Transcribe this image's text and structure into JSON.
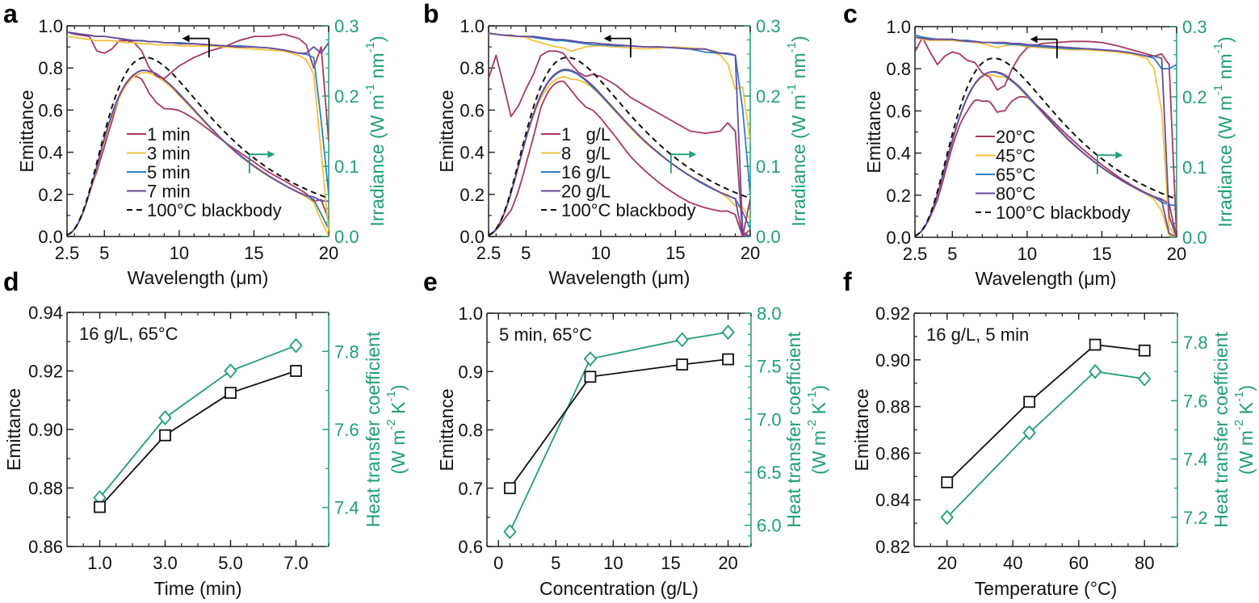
{
  "colors": {
    "right_axis": "#1f9e78",
    "axis": "#222222",
    "series1": "#a8385f",
    "series2": "#f4c03e",
    "series3": "#2c82c4",
    "series4": "#6a4a9e",
    "blackbody": "#111111",
    "emittance_marker": "#111111",
    "htc_marker": "#1f9e78"
  },
  "chart_data": [
    {
      "panel": "a",
      "type": "line",
      "xlabel": "Wavelength (μm)",
      "ylabel": "Emittance",
      "ylabel_right_parts": [
        "Irradiance (W m",
        "-1",
        " nm",
        "-1",
        ")"
      ],
      "xlim": [
        2.5,
        20
      ],
      "ylim": [
        0,
        1
      ],
      "ylim_right": [
        0,
        0.3
      ],
      "xticks": [
        2.5,
        5,
        10,
        15,
        20
      ],
      "xtick_labels": [
        "2.5",
        "5",
        "10",
        "15",
        "20"
      ],
      "yticks": [
        0,
        0.2,
        0.4,
        0.6,
        0.8,
        1.0
      ],
      "ytick_labels": [
        "0.0",
        "0.2",
        "0.4",
        "0.6",
        "0.8",
        "1.0"
      ],
      "yticks_right": [
        0,
        0.1,
        0.2,
        0.3
      ],
      "ytick_labels_right": [
        "0.0",
        "0.1",
        "0.2",
        "0.3"
      ],
      "wavelength": [
        2.5,
        3,
        3.5,
        4,
        4.5,
        5,
        5.5,
        6,
        6.5,
        7,
        7.5,
        8,
        8.5,
        9,
        9.5,
        10,
        11,
        12,
        13,
        14,
        15,
        16,
        17,
        18,
        18.5,
        19,
        19.5,
        20
      ],
      "series": [
        {
          "name": "1 min",
          "emittance": [
            0.97,
            0.96,
            0.955,
            0.95,
            0.88,
            0.87,
            0.89,
            0.93,
            0.93,
            0.92,
            0.88,
            0.8,
            0.76,
            0.75,
            0.78,
            0.81,
            0.85,
            0.88,
            0.9,
            0.93,
            0.95,
            0.95,
            0.96,
            0.94,
            0.91,
            0.8,
            0.9,
            0.45
          ]
        },
        {
          "name": "3 min",
          "emittance": [
            0.95,
            0.945,
            0.94,
            0.935,
            0.93,
            0.93,
            0.93,
            0.925,
            0.92,
            0.92,
            0.915,
            0.915,
            0.91,
            0.91,
            0.91,
            0.905,
            0.905,
            0.905,
            0.9,
            0.895,
            0.89,
            0.885,
            0.88,
            0.86,
            0.84,
            0.77,
            0.4,
            0.02
          ]
        },
        {
          "name": "5 min",
          "emittance": [
            0.97,
            0.965,
            0.96,
            0.955,
            0.95,
            0.95,
            0.945,
            0.94,
            0.935,
            0.93,
            0.93,
            0.925,
            0.925,
            0.92,
            0.92,
            0.92,
            0.915,
            0.91,
            0.905,
            0.905,
            0.9,
            0.895,
            0.885,
            0.87,
            0.865,
            0.85,
            0.55,
            0.2
          ]
        },
        {
          "name": "7 min",
          "emittance": [
            0.97,
            0.965,
            0.96,
            0.955,
            0.95,
            0.95,
            0.945,
            0.94,
            0.935,
            0.93,
            0.93,
            0.925,
            0.925,
            0.92,
            0.92,
            0.915,
            0.915,
            0.91,
            0.905,
            0.9,
            0.9,
            0.895,
            0.885,
            0.87,
            0.87,
            0.9,
            0.87,
            0.92
          ]
        }
      ],
      "blackbody_label": "100°C blackbody"
    },
    {
      "panel": "b",
      "type": "line",
      "xlabel": "Wavelength (μm)",
      "ylabel": "Emittance",
      "ylabel_right_parts": [
        "Irradiance (W m",
        "-1",
        " nm",
        "-1",
        ")"
      ],
      "xlim": [
        2.5,
        20
      ],
      "ylim": [
        0,
        1
      ],
      "ylim_right": [
        0,
        0.3
      ],
      "xticks": [
        2.5,
        5,
        10,
        15,
        20
      ],
      "xtick_labels": [
        "2.5",
        "5",
        "10",
        "15",
        "20"
      ],
      "yticks": [
        0,
        0.2,
        0.4,
        0.6,
        0.8,
        1.0
      ],
      "ytick_labels": [
        "0.0",
        "0.2",
        "0.4",
        "0.6",
        "0.8",
        "1.0"
      ],
      "yticks_right": [
        0,
        0.1,
        0.2,
        0.3
      ],
      "ytick_labels_right": [
        "0.0",
        "0.1",
        "0.2",
        "0.3"
      ],
      "wavelength": [
        2.5,
        3,
        3.5,
        4,
        4.5,
        5,
        5.5,
        6,
        6.5,
        7,
        7.5,
        8,
        8.5,
        9,
        9.5,
        10,
        11,
        12,
        13,
        14,
        15,
        16,
        17,
        18,
        18.5,
        19,
        19.5,
        20
      ],
      "series": [
        {
          "name": "1   g/L",
          "emittance": [
            0.75,
            0.86,
            0.72,
            0.57,
            0.62,
            0.7,
            0.77,
            0.86,
            0.88,
            0.88,
            0.87,
            0.82,
            0.78,
            0.76,
            0.77,
            0.76,
            0.72,
            0.66,
            0.62,
            0.58,
            0.54,
            0.5,
            0.49,
            0.5,
            0.54,
            0.5,
            0.0,
            0.18
          ]
        },
        {
          "name": "8   g/L",
          "emittance": [
            0.96,
            0.96,
            0.955,
            0.95,
            0.95,
            0.945,
            0.93,
            0.92,
            0.91,
            0.9,
            0.895,
            0.88,
            0.89,
            0.9,
            0.905,
            0.905,
            0.9,
            0.895,
            0.89,
            0.895,
            0.9,
            0.895,
            0.89,
            0.86,
            0.82,
            0.7,
            0.71,
            0.45
          ]
        },
        {
          "name": "16 g/L",
          "emittance": [
            0.965,
            0.96,
            0.955,
            0.955,
            0.95,
            0.95,
            0.945,
            0.94,
            0.935,
            0.93,
            0.93,
            0.925,
            0.92,
            0.915,
            0.91,
            0.91,
            0.905,
            0.905,
            0.9,
            0.9,
            0.895,
            0.89,
            0.875,
            0.87,
            0.865,
            0.86,
            0.6,
            0.2
          ]
        },
        {
          "name": "20 g/L",
          "emittance": [
            0.965,
            0.96,
            0.955,
            0.955,
            0.95,
            0.95,
            0.95,
            0.945,
            0.94,
            0.935,
            0.935,
            0.93,
            0.925,
            0.92,
            0.92,
            0.915,
            0.91,
            0.905,
            0.9,
            0.9,
            0.895,
            0.89,
            0.89,
            0.87,
            0.87,
            0.86,
            0.02,
            0.0
          ]
        }
      ],
      "blackbody_label": "100°C blackbody"
    },
    {
      "panel": "c",
      "type": "line",
      "xlabel": "Wavelength (μm)",
      "ylabel": "Emittance",
      "ylabel_right_parts": [
        "Irradiance (W m",
        "-1",
        " nm",
        "-1",
        ")"
      ],
      "xlim": [
        2.5,
        20
      ],
      "ylim": [
        0,
        1
      ],
      "ylim_right": [
        0,
        0.3
      ],
      "xticks": [
        2.5,
        5,
        10,
        15,
        20
      ],
      "xtick_labels": [
        "2.5",
        "5",
        "10",
        "15",
        "20"
      ],
      "yticks": [
        0,
        0.2,
        0.4,
        0.6,
        0.8,
        1.0
      ],
      "ytick_labels": [
        "0.0",
        "0.2",
        "0.4",
        "0.6",
        "0.8",
        "1.0"
      ],
      "yticks_right": [
        0,
        0.1,
        0.2,
        0.3
      ],
      "ytick_labels_right": [
        "0.0",
        "0.1",
        "0.2",
        "0.3"
      ],
      "wavelength": [
        2.5,
        3,
        3.5,
        4,
        4.5,
        5,
        5.5,
        6,
        6.5,
        7,
        7.5,
        8,
        8.5,
        9,
        9.5,
        10,
        11,
        12,
        13,
        14,
        15,
        16,
        17,
        18,
        18.5,
        19,
        19.5,
        20
      ],
      "series": [
        {
          "name": "20°C",
          "emittance": [
            0.88,
            0.95,
            0.88,
            0.82,
            0.86,
            0.88,
            0.87,
            0.84,
            0.83,
            0.78,
            0.76,
            0.7,
            0.72,
            0.8,
            0.86,
            0.9,
            0.92,
            0.925,
            0.93,
            0.93,
            0.925,
            0.91,
            0.89,
            0.87,
            0.86,
            0.87,
            0.82,
            0.0
          ]
        },
        {
          "name": "45°C",
          "emittance": [
            0.95,
            0.94,
            0.935,
            0.935,
            0.935,
            0.935,
            0.93,
            0.93,
            0.925,
            0.92,
            0.91,
            0.9,
            0.91,
            0.915,
            0.91,
            0.905,
            0.9,
            0.895,
            0.89,
            0.89,
            0.885,
            0.88,
            0.87,
            0.85,
            0.8,
            0.6,
            0.05,
            0.0
          ]
        },
        {
          "name": "65°C",
          "emittance": [
            0.96,
            0.95,
            0.945,
            0.94,
            0.94,
            0.94,
            0.935,
            0.935,
            0.93,
            0.925,
            0.925,
            0.92,
            0.92,
            0.915,
            0.915,
            0.91,
            0.905,
            0.9,
            0.895,
            0.895,
            0.89,
            0.885,
            0.875,
            0.86,
            0.85,
            0.8,
            0.8,
            0.82
          ]
        },
        {
          "name": "80°C",
          "emittance": [
            0.95,
            0.945,
            0.94,
            0.94,
            0.94,
            0.94,
            0.935,
            0.93,
            0.93,
            0.925,
            0.925,
            0.925,
            0.925,
            0.92,
            0.92,
            0.915,
            0.91,
            0.905,
            0.9,
            0.895,
            0.89,
            0.885,
            0.875,
            0.86,
            0.86,
            0.85,
            0.1,
            0.0
          ]
        }
      ],
      "blackbody_label": "100°C blackbody"
    },
    {
      "panel": "d",
      "type": "line",
      "annotation": "16 g/L, 65°C",
      "xlabel": "Time (min)",
      "ylabel": "Emittance",
      "ylabel_right_line1": "Heat transfer coefficient",
      "ylabel_right_parts": [
        "(W m",
        "-2",
        " K",
        "-1",
        ")"
      ],
      "xlim": [
        0,
        8
      ],
      "ylim": [
        0.86,
        0.94
      ],
      "ylim_right": [
        7.3,
        7.9
      ],
      "xticks": [
        1,
        3,
        5,
        7
      ],
      "xtick_labels": [
        "1.0",
        "3.0",
        "5.0",
        "7.0"
      ],
      "yticks": [
        0.86,
        0.88,
        0.9,
        0.92,
        0.94
      ],
      "ytick_labels": [
        "0.86",
        "0.88",
        "0.90",
        "0.92",
        "0.94"
      ],
      "yticks_right": [
        7.4,
        7.6,
        7.8
      ],
      "ytick_labels_right": [
        "7.4",
        "7.6",
        "7.8"
      ],
      "x": [
        1,
        3,
        5,
        7
      ],
      "series": [
        {
          "name": "Emittance",
          "axis": "left",
          "values": [
            0.8735,
            0.898,
            0.9125,
            0.92
          ]
        },
        {
          "name": "Heat transfer coefficient",
          "axis": "right",
          "values": [
            7.425,
            7.63,
            7.75,
            7.815
          ]
        }
      ]
    },
    {
      "panel": "e",
      "type": "line",
      "annotation": "5 min, 65°C",
      "xlabel": "Concentration (g/L)",
      "ylabel": "Emittance",
      "ylabel_right_line1": "Heat transfer coefficient",
      "ylabel_right_parts": [
        "(W m",
        "-2",
        " K",
        "-1",
        ")"
      ],
      "xlim": [
        -1,
        22
      ],
      "ylim": [
        0.6,
        1.0
      ],
      "ylim_right": [
        5.8,
        8.0
      ],
      "xticks": [
        0,
        5,
        10,
        15,
        20
      ],
      "xtick_labels": [
        "0",
        "5",
        "10",
        "15",
        "20"
      ],
      "yticks": [
        0.6,
        0.7,
        0.8,
        0.9,
        1.0
      ],
      "ytick_labels": [
        "0.6",
        "0.7",
        "0.8",
        "0.9",
        "1.0"
      ],
      "yticks_right": [
        6.0,
        6.5,
        7.0,
        7.5,
        8.0
      ],
      "ytick_labels_right": [
        "6.0",
        "6.5",
        "7.0",
        "7.5",
        "8.0"
      ],
      "x": [
        1,
        8,
        16,
        20
      ],
      "series": [
        {
          "name": "Emittance",
          "axis": "left",
          "values": [
            0.7,
            0.891,
            0.912,
            0.921
          ]
        },
        {
          "name": "Heat transfer coefficient",
          "axis": "right",
          "values": [
            5.94,
            7.57,
            7.75,
            7.82
          ]
        }
      ]
    },
    {
      "panel": "f",
      "type": "line",
      "annotation": "16 g/L, 5 min",
      "xlabel": "Temperature (°C)",
      "ylabel": "Emittance",
      "ylabel_right_line1": "Heat transfer coefficient",
      "ylabel_right_parts": [
        "(W m",
        "-2",
        " K",
        "-1",
        ")"
      ],
      "xlim": [
        10,
        90
      ],
      "ylim": [
        0.82,
        0.92
      ],
      "ylim_right": [
        7.1,
        7.9
      ],
      "xticks": [
        20,
        40,
        60,
        80
      ],
      "xtick_labels": [
        "20",
        "40",
        "60",
        "80"
      ],
      "yticks": [
        0.82,
        0.84,
        0.86,
        0.88,
        0.9,
        0.92
      ],
      "ytick_labels": [
        "0.82",
        "0.84",
        "0.86",
        "0.88",
        "0.90",
        "0.92"
      ],
      "yticks_right": [
        7.2,
        7.4,
        7.6,
        7.8
      ],
      "ytick_labels_right": [
        "7.2",
        "7.4",
        "7.6",
        "7.8"
      ],
      "x": [
        20,
        45,
        65,
        80
      ],
      "series": [
        {
          "name": "Emittance",
          "axis": "left",
          "values": [
            0.8475,
            0.882,
            0.9065,
            0.904
          ]
        },
        {
          "name": "Heat transfer coefficient",
          "axis": "right",
          "values": [
            7.2,
            7.49,
            7.7,
            7.675
          ]
        }
      ]
    }
  ]
}
